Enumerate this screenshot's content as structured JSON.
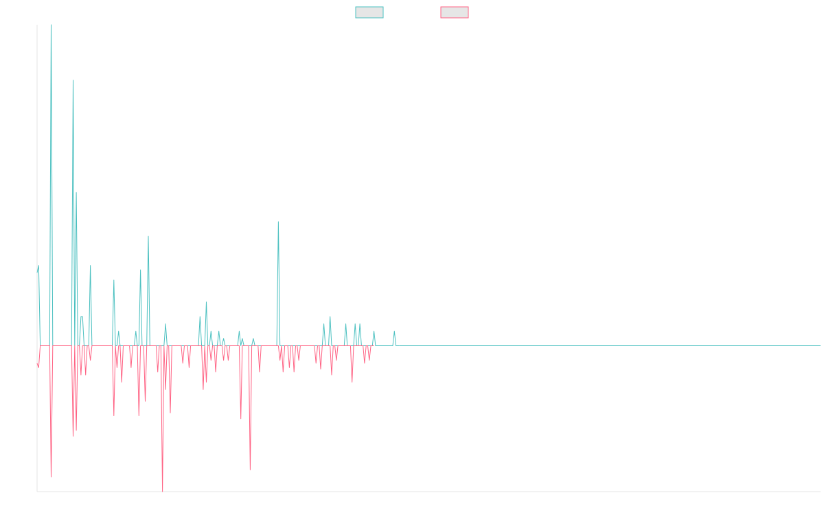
{
  "chart_data": {
    "type": "line",
    "title": "",
    "xlabel": "",
    "ylabel": "",
    "grid": false,
    "legend_position": "top-center",
    "baseline": 0,
    "ylim": [
      -100,
      220
    ],
    "xlim": [
      0,
      1000
    ],
    "x_step": 2,
    "series": [
      {
        "color": "#4bc0c0",
        "fill": "#e6e6e6",
        "values": [
          50,
          55,
          0,
          0,
          0,
          0,
          0,
          0,
          0,
          220,
          0,
          0,
          0,
          0,
          0,
          0,
          0,
          0,
          0,
          0,
          0,
          0,
          0,
          182,
          0,
          105,
          0,
          0,
          20,
          20,
          0,
          0,
          0,
          0,
          55,
          0,
          0,
          0,
          0,
          0,
          0,
          0,
          0,
          0,
          0,
          0,
          0,
          0,
          0,
          45,
          0,
          0,
          10,
          0,
          0,
          0,
          0,
          0,
          0,
          0,
          0,
          0,
          0,
          10,
          0,
          0,
          52,
          0,
          0,
          0,
          0,
          75,
          0,
          0,
          0,
          0,
          0,
          0,
          0,
          0,
          0,
          0,
          15,
          0,
          0,
          0,
          0,
          0,
          0,
          0,
          0,
          0,
          0,
          0,
          0,
          0,
          0,
          0,
          0,
          0,
          0,
          0,
          0,
          0,
          20,
          0,
          0,
          0,
          30,
          0,
          0,
          10,
          0,
          0,
          0,
          0,
          10,
          0,
          0,
          5,
          0,
          0,
          0,
          0,
          0,
          0,
          0,
          0,
          0,
          10,
          0,
          5,
          0,
          0,
          0,
          0,
          0,
          0,
          5,
          0,
          0,
          0,
          0,
          0,
          0,
          0,
          0,
          0,
          0,
          0,
          0,
          0,
          0,
          0,
          85,
          0,
          0,
          0,
          0,
          0,
          0,
          0,
          0,
          0,
          0,
          0,
          0,
          0,
          0,
          0,
          0,
          0,
          0,
          0,
          0,
          0,
          0,
          0,
          0,
          0,
          0,
          0,
          0,
          15,
          0,
          0,
          0,
          20,
          0,
          0,
          0,
          0,
          0,
          0,
          0,
          0,
          0,
          15,
          0,
          0,
          0,
          0,
          0,
          15,
          0,
          0,
          15,
          0,
          0,
          0,
          0,
          0,
          0,
          0,
          0,
          10,
          0,
          0,
          0,
          0,
          0,
          0,
          0,
          0,
          0,
          0,
          0,
          0,
          10,
          0,
          0,
          0
        ]
      },
      {
        "color": "#ff6384",
        "fill": "#e6e6e6",
        "values": [
          -12,
          -15,
          0,
          0,
          0,
          0,
          0,
          0,
          0,
          -90,
          0,
          0,
          0,
          0,
          0,
          0,
          0,
          0,
          0,
          0,
          0,
          0,
          0,
          -62,
          0,
          -58,
          0,
          0,
          -20,
          0,
          0,
          -20,
          0,
          0,
          -10,
          0,
          0,
          0,
          0,
          0,
          0,
          0,
          0,
          0,
          0,
          0,
          0,
          0,
          0,
          -48,
          0,
          -15,
          0,
          0,
          -25,
          0,
          0,
          0,
          0,
          0,
          -15,
          0,
          0,
          0,
          0,
          -48,
          0,
          0,
          0,
          -38,
          0,
          0,
          0,
          0,
          0,
          0,
          0,
          -18,
          0,
          0,
          -100,
          0,
          -30,
          0,
          0,
          -46,
          0,
          0,
          0,
          0,
          0,
          0,
          0,
          -12,
          0,
          0,
          0,
          -15,
          0,
          0,
          0,
          0,
          0,
          0,
          0,
          0,
          -30,
          0,
          -25,
          0,
          0,
          -10,
          0,
          0,
          -18,
          0,
          0,
          0,
          0,
          -10,
          0,
          0,
          -10,
          0,
          0,
          0,
          0,
          0,
          0,
          0,
          -50,
          0,
          0,
          0,
          0,
          0,
          -85,
          0,
          0,
          0,
          0,
          0,
          -18,
          0,
          0,
          0,
          0,
          0,
          0,
          0,
          0,
          0,
          0,
          0,
          0,
          -10,
          0,
          -18,
          0,
          0,
          0,
          -15,
          0,
          0,
          -18,
          0,
          0,
          -10,
          0,
          0,
          0,
          0,
          0,
          0,
          0,
          0,
          0,
          0,
          -12,
          0,
          0,
          -16,
          0,
          0,
          0,
          0,
          0,
          0,
          -20,
          0,
          0,
          -10,
          0,
          0,
          0,
          0,
          0,
          0,
          0,
          0,
          0,
          -25,
          0,
          0,
          0,
          0,
          0,
          0,
          0,
          -12,
          0,
          0,
          -10,
          0,
          0,
          0
        ]
      }
    ]
  }
}
